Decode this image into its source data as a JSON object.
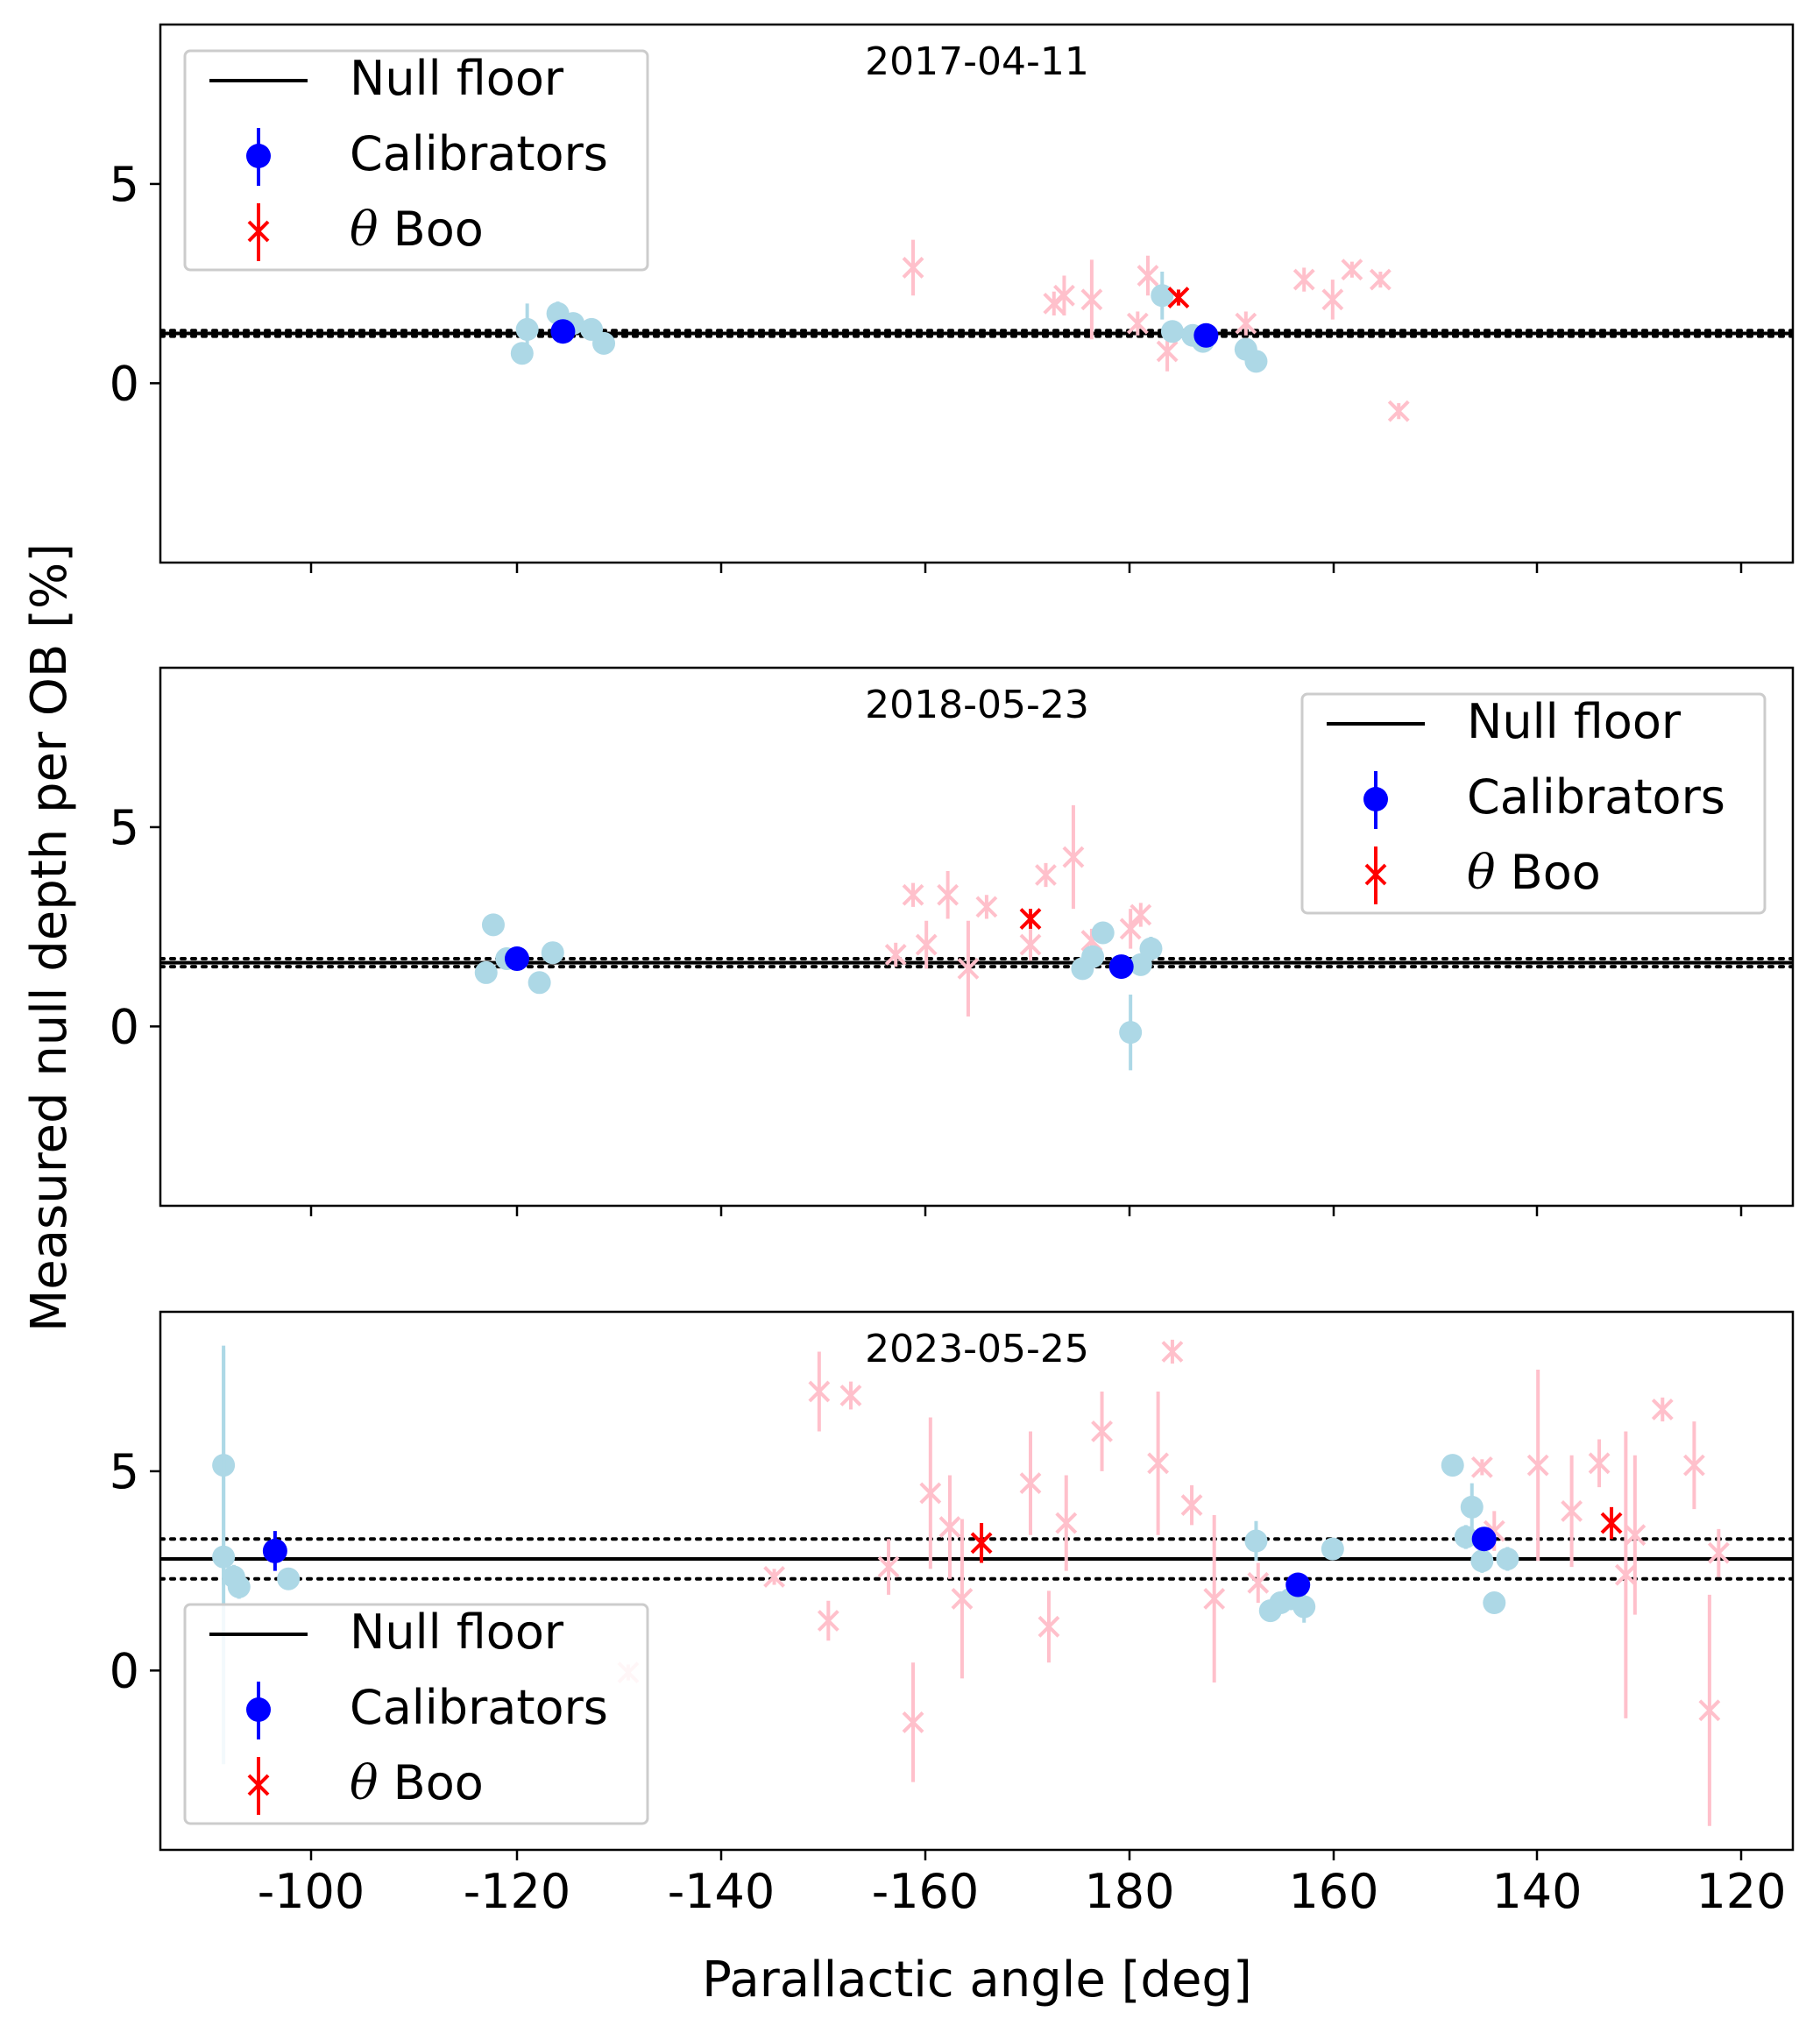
{
  "figure": {
    "ylabel": "Measured null depth per OB [%]",
    "xlabel": "Parallactic angle [deg]"
  },
  "chart_data": [
    {
      "type": "scatter",
      "title": "2017-04-11",
      "legend_position": "top-left",
      "legend": {
        "null_floor": "Null floor",
        "calibrators": "Calibrators",
        "target_greek": "θ",
        "target_name": " Boo"
      },
      "xticks": [
        "-100",
        "-120",
        "-140",
        "-160",
        "180",
        "160",
        "140",
        "120"
      ],
      "yticks": [
        "5",
        "0"
      ],
      "ylim": [
        -4.5,
        9
      ],
      "null_floor": {
        "value": 1.25,
        "lower": 1.18,
        "upper": 1.32
      },
      "calibrator_points": [
        {
          "x": -120.5,
          "y": 0.75,
          "err": 0.2
        },
        {
          "x": -121.0,
          "y": 1.35,
          "err": 0.65
        },
        {
          "x": -124.0,
          "y": 1.75,
          "err": 0.3
        },
        {
          "x": -125.5,
          "y": 1.5,
          "err": 0.2
        },
        {
          "x": -127.3,
          "y": 1.35,
          "err": 0.2
        },
        {
          "x": -128.5,
          "y": 1.0,
          "err": 0.2
        },
        {
          "x": 176.8,
          "y": 2.2,
          "err": 0.6
        },
        {
          "x": 175.8,
          "y": 1.3,
          "err": 0.2
        },
        {
          "x": 173.8,
          "y": 1.2,
          "err": 0.2
        },
        {
          "x": 172.8,
          "y": 1.05,
          "err": 0.2
        },
        {
          "x": 168.6,
          "y": 0.85,
          "err": 0.2
        },
        {
          "x": 167.6,
          "y": 0.55,
          "err": 0.2
        }
      ],
      "calibrator_means": [
        {
          "x": -124.5,
          "y": 1.3,
          "err": 0.15
        },
        {
          "x": 172.5,
          "y": 1.2,
          "err": 0.15
        }
      ],
      "target_points": [
        {
          "x": -158.8,
          "y": 2.9,
          "err": 0.7
        },
        {
          "x": -172.6,
          "y": 2.0,
          "err": 0.3
        },
        {
          "x": -173.6,
          "y": 2.2,
          "err": 0.5
        },
        {
          "x": -176.3,
          "y": 2.1,
          "err": 1.0
        },
        {
          "x": 179.2,
          "y": 1.5,
          "err": 0.3
        },
        {
          "x": 178.2,
          "y": 2.7,
          "err": 0.5
        },
        {
          "x": 176.3,
          "y": 0.8,
          "err": 0.5
        },
        {
          "x": 168.6,
          "y": 1.5,
          "err": 0.3
        },
        {
          "x": 162.9,
          "y": 2.6,
          "err": 0.3
        },
        {
          "x": 160.1,
          "y": 2.1,
          "err": 0.5
        },
        {
          "x": 158.2,
          "y": 2.85,
          "err": 0.2
        },
        {
          "x": 155.4,
          "y": 2.6,
          "err": 0.2
        },
        {
          "x": 153.6,
          "y": -0.7,
          "err": 0.2
        }
      ],
      "target_means": [
        {
          "x": 175.2,
          "y": 2.15,
          "err": 0.2
        }
      ]
    },
    {
      "type": "scatter",
      "title": "2018-05-23",
      "legend_position": "top-right",
      "legend": {
        "null_floor": "Null floor",
        "calibrators": "Calibrators",
        "target_greek": "θ",
        "target_name": " Boo"
      },
      "xticks": [
        "-100",
        "-120",
        "-140",
        "-160",
        "180",
        "160",
        "140",
        "120"
      ],
      "yticks": [
        "5",
        "0"
      ],
      "ylim": [
        -4.5,
        9
      ],
      "null_floor": {
        "value": 1.6,
        "lower": 1.5,
        "upper": 1.7
      },
      "calibrator_points": [
        {
          "x": -117.0,
          "y": 1.35,
          "err": 0.2
        },
        {
          "x": -117.7,
          "y": 2.55,
          "err": 0.2
        },
        {
          "x": -119.0,
          "y": 1.7,
          "err": 0.2
        },
        {
          "x": -122.2,
          "y": 1.1,
          "err": 0.2
        },
        {
          "x": -123.5,
          "y": 1.85,
          "err": 0.2
        },
        {
          "x": 184.6,
          "y": 1.45,
          "err": 0.2
        },
        {
          "x": 183.6,
          "y": 1.75,
          "err": 0.2
        },
        {
          "x": 182.6,
          "y": 2.35,
          "err": 0.2
        },
        {
          "x": 179.9,
          "y": -0.15,
          "err": 0.95
        },
        {
          "x": 178.9,
          "y": 1.55,
          "err": 0.2
        },
        {
          "x": 177.9,
          "y": 1.95,
          "err": 0.3
        }
      ],
      "calibrator_means": [
        {
          "x": -120.0,
          "y": 1.7,
          "err": 0.15
        },
        {
          "x": 180.8,
          "y": 1.5,
          "err": 0.2
        }
      ],
      "target_points": [
        {
          "x": -157.1,
          "y": 1.8,
          "err": 0.3
        },
        {
          "x": -158.8,
          "y": 3.3,
          "err": 0.3
        },
        {
          "x": -160.1,
          "y": 2.05,
          "err": 0.6
        },
        {
          "x": -162.2,
          "y": 3.3,
          "err": 0.6
        },
        {
          "x": -164.2,
          "y": 1.45,
          "err": 1.2
        },
        {
          "x": -166.0,
          "y": 3.0,
          "err": 0.3
        },
        {
          "x": -170.3,
          "y": 2.05,
          "err": 0.4
        },
        {
          "x": -171.8,
          "y": 3.8,
          "err": 0.3
        },
        {
          "x": -174.5,
          "y": 4.25,
          "err": 1.3
        },
        {
          "x": -176.3,
          "y": 2.15,
          "err": 0.3
        },
        {
          "x": 179.9,
          "y": 2.45,
          "err": 0.5
        },
        {
          "x": 178.9,
          "y": 2.8,
          "err": 0.3
        }
      ],
      "target_means": [
        {
          "x": -170.3,
          "y": 2.7,
          "err": 0.25
        }
      ]
    },
    {
      "type": "scatter",
      "title": "2023-05-25",
      "legend_position": "bottom-left",
      "legend": {
        "null_floor": "Null floor",
        "calibrators": "Calibrators",
        "target_greek": "θ",
        "target_name": " Boo"
      },
      "xticks": [
        "-100",
        "-120",
        "-140",
        "-160",
        "180",
        "160",
        "140",
        "120"
      ],
      "yticks": [
        "5",
        "0"
      ],
      "ylim": [
        -4.5,
        9
      ],
      "null_floor": {
        "value": 2.8,
        "lower": 2.3,
        "upper": 3.3
      },
      "calibrator_points": [
        {
          "x": -91.5,
          "y": 5.15,
          "err": 3.0
        },
        {
          "x": -91.5,
          "y": 2.85,
          "err": 5.2
        },
        {
          "x": -92.5,
          "y": 2.35,
          "err": 0.3
        },
        {
          "x": -93.0,
          "y": 2.1,
          "err": 0.3
        },
        {
          "x": -97.8,
          "y": 2.3,
          "err": 0.2
        },
        {
          "x": 167.6,
          "y": 3.25,
          "err": 0.5
        },
        {
          "x": 166.2,
          "y": 1.5,
          "err": 0.2
        },
        {
          "x": 165.2,
          "y": 1.7,
          "err": 0.2
        },
        {
          "x": 164.2,
          "y": 1.8,
          "err": 0.2
        },
        {
          "x": 162.9,
          "y": 1.6,
          "err": 0.4
        },
        {
          "x": 160.1,
          "y": 3.05,
          "err": 0.2
        },
        {
          "x": 148.3,
          "y": 5.15,
          "err": 0.2
        },
        {
          "x": 147.0,
          "y": 3.35,
          "err": 0.3
        },
        {
          "x": 146.4,
          "y": 4.1,
          "err": 0.6
        },
        {
          "x": 145.4,
          "y": 2.75,
          "err": 0.3
        },
        {
          "x": 144.2,
          "y": 1.7,
          "err": 0.2
        },
        {
          "x": 142.9,
          "y": 2.8,
          "err": 0.3
        }
      ],
      "calibrator_means": [
        {
          "x": -96.5,
          "y": 3.0,
          "err": 0.5
        },
        {
          "x": 163.5,
          "y": 2.15,
          "err": 0.2
        },
        {
          "x": 145.2,
          "y": 3.3,
          "err": 0.3
        }
      ],
      "target_points": [
        {
          "x": -130.9,
          "y": -0.05,
          "err": 0.2
        },
        {
          "x": -145.2,
          "y": 2.35,
          "err": 0.2
        },
        {
          "x": -149.6,
          "y": 7.0,
          "err": 1.0
        },
        {
          "x": -150.5,
          "y": 1.25,
          "err": 0.5
        },
        {
          "x": -152.7,
          "y": 6.9,
          "err": 0.35
        },
        {
          "x": -156.4,
          "y": 2.6,
          "err": 0.7
        },
        {
          "x": -158.8,
          "y": -1.3,
          "err": 1.5
        },
        {
          "x": -160.5,
          "y": 4.45,
          "err": 1.9
        },
        {
          "x": -162.4,
          "y": 3.6,
          "err": 1.3
        },
        {
          "x": -163.6,
          "y": 1.8,
          "err": 2.0
        },
        {
          "x": -170.3,
          "y": 4.7,
          "err": 1.3
        },
        {
          "x": -172.1,
          "y": 1.1,
          "err": 0.9
        },
        {
          "x": -173.8,
          "y": 3.7,
          "err": 1.2
        },
        {
          "x": -177.3,
          "y": 6.0,
          "err": 1.0
        },
        {
          "x": 177.2,
          "y": 5.2,
          "err": 1.8
        },
        {
          "x": 175.8,
          "y": 8.0,
          "err": 0.3
        },
        {
          "x": 173.9,
          "y": 4.15,
          "err": 0.5
        },
        {
          "x": 171.7,
          "y": 1.8,
          "err": 2.1
        },
        {
          "x": 167.4,
          "y": 2.2,
          "err": 0.5
        },
        {
          "x": 145.4,
          "y": 5.1,
          "err": 0.2
        },
        {
          "x": 144.2,
          "y": 3.5,
          "err": 0.5
        },
        {
          "x": 139.9,
          "y": 5.15,
          "err": 2.4
        },
        {
          "x": 136.6,
          "y": 4.0,
          "err": 1.4
        },
        {
          "x": 133.9,
          "y": 5.2,
          "err": 0.6
        },
        {
          "x": 131.3,
          "y": 2.4,
          "err": 3.6
        },
        {
          "x": 130.4,
          "y": 3.4,
          "err": 2.0
        },
        {
          "x": 127.7,
          "y": 6.55,
          "err": 0.3
        },
        {
          "x": 124.6,
          "y": 5.15,
          "err": 1.1
        },
        {
          "x": 123.1,
          "y": -1.0,
          "err": 2.9
        },
        {
          "x": 122.2,
          "y": 2.95,
          "err": 0.6
        }
      ],
      "target_means": [
        {
          "x": -165.5,
          "y": 3.2,
          "err": 0.5
        },
        {
          "x": 132.7,
          "y": 3.7,
          "err": 0.4
        }
      ]
    }
  ],
  "colors": {
    "calibrator_light": "#add8e6",
    "calibrator_mean": "#0000ff",
    "target_light": "#ffc0cb",
    "target_mean": "#ff0000",
    "floor": "#000000",
    "axis": "#000000",
    "legend_border": "#cccccc"
  }
}
